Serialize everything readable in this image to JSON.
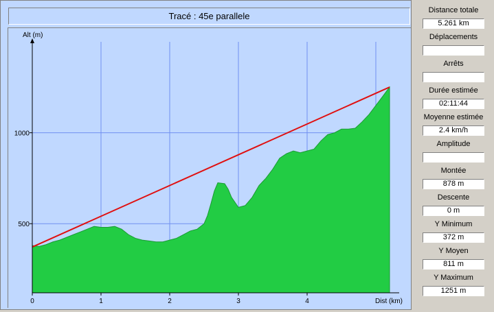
{
  "title": "Tracé : 45e parallele",
  "colors": {
    "background": "#c0d8ff",
    "grid": "#7090f0",
    "profile_fill": "#22cc44",
    "line": "#e01010"
  },
  "chart_data": {
    "type": "area",
    "ylabel": "Alt (m)",
    "xlabel": "Dist (km)",
    "xlim": [
      0,
      5.2
    ],
    "ylim": [
      120,
      1500
    ],
    "x_ticks": [
      0,
      1,
      2,
      3,
      4
    ],
    "x_tick_labels": [
      "0",
      "1",
      "2",
      "3",
      "4"
    ],
    "y_ticks": [
      500,
      1000
    ],
    "y_tick_labels": [
      "500",
      "1000"
    ],
    "grid": true,
    "series": [
      {
        "values_x": [
          0,
          0.1,
          0.2,
          0.3,
          0.4,
          0.5,
          0.6,
          0.7,
          0.8,
          0.9,
          1.0,
          1.1,
          1.2,
          1.3,
          1.4,
          1.5,
          1.6,
          1.7,
          1.8,
          1.9,
          2.0,
          2.1,
          2.2,
          2.3,
          2.4,
          2.5,
          2.55,
          2.6,
          2.65,
          2.7,
          2.8,
          2.85,
          2.9,
          3.0,
          3.1,
          3.2,
          3.3,
          3.4,
          3.5,
          3.6,
          3.7,
          3.8,
          3.9,
          4.0,
          4.1,
          4.2,
          4.3,
          4.4,
          4.5,
          4.6,
          4.7,
          4.8,
          4.9,
          5.0,
          5.1,
          5.2
        ],
        "values_y": [
          380,
          375,
          385,
          400,
          410,
          425,
          440,
          455,
          470,
          485,
          480,
          480,
          485,
          470,
          440,
          420,
          410,
          405,
          400,
          400,
          410,
          420,
          440,
          460,
          470,
          500,
          545,
          610,
          680,
          725,
          720,
          690,
          645,
          590,
          600,
          645,
          710,
          750,
          800,
          860,
          885,
          900,
          890,
          900,
          910,
          955,
          990,
          1000,
          1020,
          1020,
          1025,
          1060,
          1100,
          1150,
          1200,
          1251
        ]
      },
      {
        "values_x": [
          0,
          5.2
        ],
        "values_y": [
          372,
          1251
        ]
      }
    ]
  },
  "stats": [
    {
      "label": "Distance totale",
      "value": "5.261 km"
    },
    {
      "label": "Déplacements",
      "value": ""
    },
    {
      "label": "Arrêts",
      "value": ""
    },
    {
      "label": "Durée estimée",
      "value": "02:11:44"
    },
    {
      "label": "Moyenne estimée",
      "value": "2.4 km/h"
    },
    {
      "label": "Amplitude",
      "value": ""
    },
    {
      "label": "Montée",
      "value": "878 m"
    },
    {
      "label": "Descente",
      "value": "0 m"
    },
    {
      "label": "Y Minimum",
      "value": "372 m"
    },
    {
      "label": "Y Moyen",
      "value": "811 m"
    },
    {
      "label": "Y Maximum",
      "value": "1251 m"
    }
  ]
}
